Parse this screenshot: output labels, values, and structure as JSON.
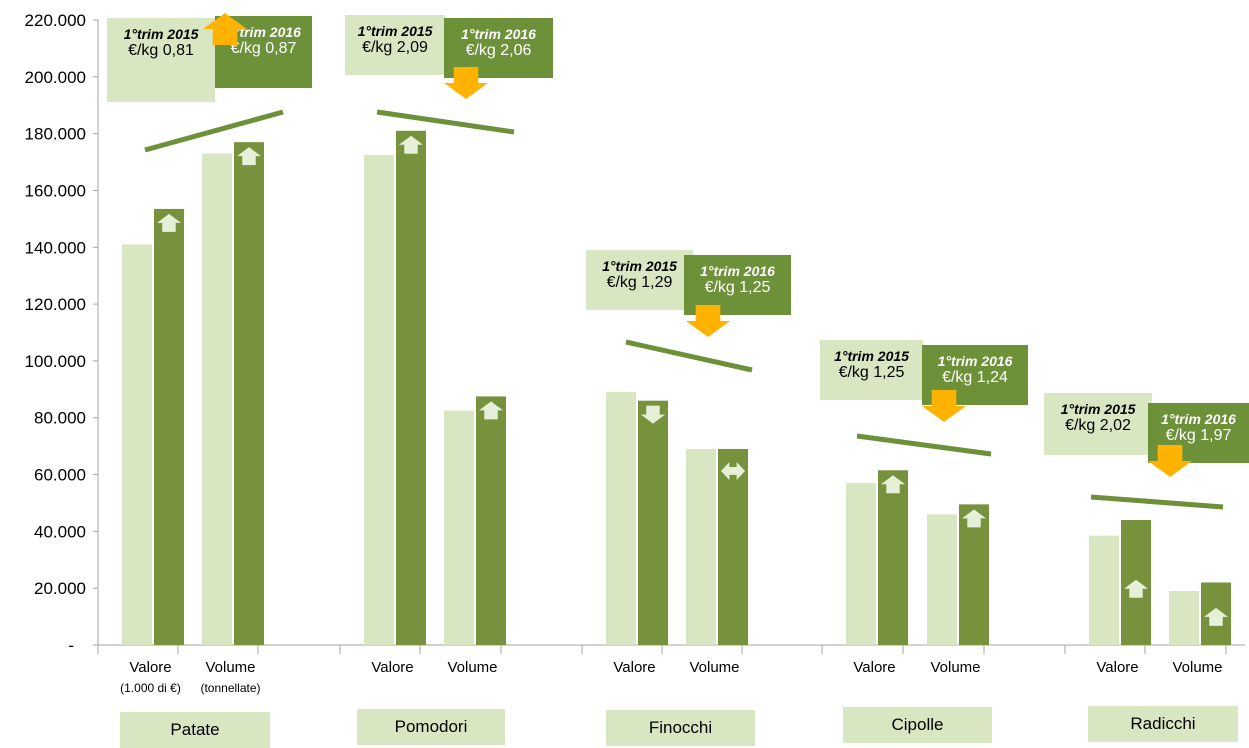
{
  "colors": {
    "series_2015": "#d9e6c2",
    "series_2016": "#76923c",
    "trend_line": "#6d9139",
    "price_arrow": "#ffb300",
    "bar_arrow": "#e6efd8",
    "label_box_2015": "#d9e6c2",
    "label_box_2016": "#6d9139"
  },
  "chart_data": {
    "type": "bar",
    "ylim": [
      0,
      220000
    ],
    "y_ticks": [
      "-",
      "20.000",
      "40.000",
      "60.000",
      "80.000",
      "100.000",
      "120.000",
      "140.000",
      "160.000",
      "180.000",
      "200.000",
      "220.000"
    ],
    "y_tick_values": [
      0,
      20000,
      40000,
      60000,
      80000,
      100000,
      120000,
      140000,
      160000,
      180000,
      200000,
      220000
    ],
    "grid": false,
    "legend": "none",
    "groups": [
      {
        "product": "Patate",
        "subcategories": [
          {
            "label": "Valore",
            "note": "(1.000 di €)",
            "v2015": 141000,
            "v2016": 153500,
            "change": "up"
          },
          {
            "label": "Volume",
            "note": "(tonnellate)",
            "v2015": 173000,
            "v2016": 177000,
            "change": "up"
          }
        ],
        "price": {
          "label_2015": "1°trim 2015",
          "price_2015": "€/kg 0,81",
          "label_2016": "1°trim 2016",
          "price_2016": "€/kg 0,87",
          "change": "up"
        }
      },
      {
        "product": "Pomodori",
        "subcategories": [
          {
            "label": "Valore",
            "note": "",
            "v2015": 172500,
            "v2016": 181000,
            "change": "up"
          },
          {
            "label": "Volume",
            "note": "",
            "v2015": 82500,
            "v2016": 87500,
            "change": "up"
          }
        ],
        "price": {
          "label_2015": "1°trim 2015",
          "price_2015": "€/kg 2,09",
          "label_2016": "1°trim 2016",
          "price_2016": "€/kg 2,06",
          "change": "down"
        }
      },
      {
        "product": "Finocchi",
        "subcategories": [
          {
            "label": "Valore",
            "note": "",
            "v2015": 89000,
            "v2016": 86000,
            "change": "down"
          },
          {
            "label": "Volume",
            "note": "",
            "v2015": 69000,
            "v2016": 69000,
            "change": "equal"
          }
        ],
        "price": {
          "label_2015": "1°trim 2015",
          "price_2015": "€/kg 1,29",
          "label_2016": "1°trim 2016",
          "price_2016": "€/kg 1,25",
          "change": "down"
        }
      },
      {
        "product": "Cipolle",
        "subcategories": [
          {
            "label": "Valore",
            "note": "",
            "v2015": 57000,
            "v2016": 61500,
            "change": "up"
          },
          {
            "label": "Volume",
            "note": "",
            "v2015": 46000,
            "v2016": 49500,
            "change": "up"
          }
        ],
        "price": {
          "label_2015": "1°trim 2015",
          "price_2015": "€/kg 1,25",
          "label_2016": "1°trim 2016",
          "price_2016": "€/kg 1,24",
          "change": "down"
        }
      },
      {
        "product": "Radicchi",
        "subcategories": [
          {
            "label": "Valore",
            "note": "",
            "v2015": 38500,
            "v2016": 44000,
            "change": "up"
          },
          {
            "label": "Volume",
            "note": "",
            "v2015": 19000,
            "v2016": 22000,
            "change": "up"
          }
        ],
        "price": {
          "label_2015": "1°trim 2015",
          "price_2015": "€/kg 2,02",
          "label_2016": "1°trim 2016",
          "price_2016": "€/kg  1,97",
          "change": "down"
        }
      }
    ]
  }
}
